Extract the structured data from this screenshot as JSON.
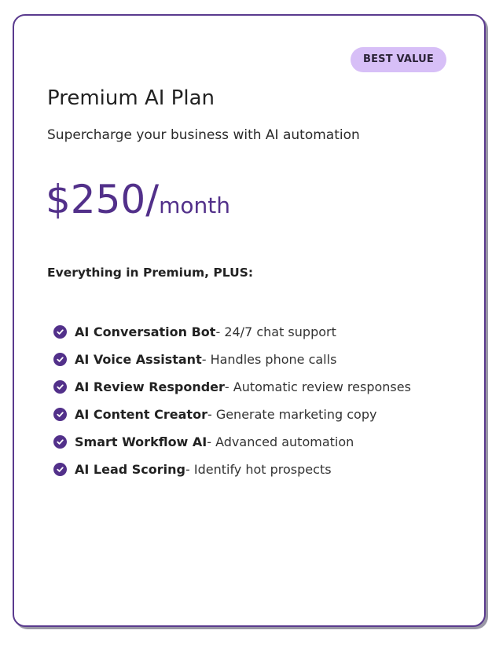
{
  "card": {
    "badge": "BEST VALUE",
    "title": "Premium AI Plan",
    "subtitle": "Supercharge your business with AI automation",
    "price": {
      "amount": "$250/",
      "period": "month"
    },
    "features_heading": "Everything in Premium, PLUS:",
    "features": [
      {
        "name": "AI Conversation Bot",
        "desc": " - 24/7 chat support"
      },
      {
        "name": "AI Voice Assistant",
        "desc": " - Handles phone calls"
      },
      {
        "name": "AI Review Responder",
        "desc": " - Automatic review responses"
      },
      {
        "name": "AI Content Creator",
        "desc": " - Generate marketing copy"
      },
      {
        "name": "Smart Workflow AI",
        "desc": " - Advanced automation"
      },
      {
        "name": "AI Lead Scoring",
        "desc": " - Identify hot prospects"
      }
    ],
    "icon": "check-circle-icon",
    "colors": {
      "accent": "#52308a",
      "badge_bg": "#d7bff7",
      "border": "#5a3a8e"
    }
  }
}
